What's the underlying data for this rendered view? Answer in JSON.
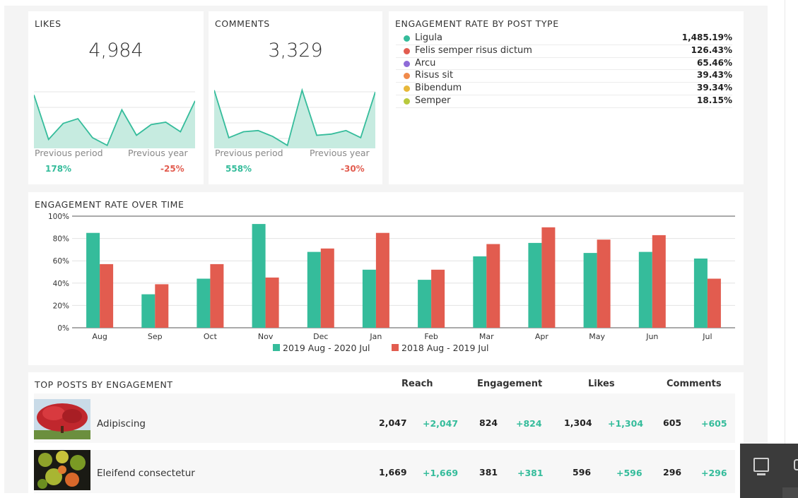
{
  "likes": {
    "title": "LIKES",
    "value": "4,984",
    "prev_period_label": "Previous period",
    "prev_period_value": "178%",
    "prev_year_label": "Previous year",
    "prev_year_value": "-25%"
  },
  "comments": {
    "title": "COMMENTS",
    "value": "3,329",
    "prev_period_label": "Previous period",
    "prev_period_value": "558%",
    "prev_year_label": "Previous year",
    "prev_year_value": "-30%"
  },
  "engagement_by_type": {
    "title": "ENGAGEMENT RATE BY POST TYPE",
    "items": [
      {
        "name": "Ligula",
        "value": "1,485.19%",
        "color": "#35bc9b"
      },
      {
        "name": "Felis semper risus dictum",
        "value": "126.43%",
        "color": "#e25c4f"
      },
      {
        "name": "Arcu",
        "value": "65.46%",
        "color": "#8e6bd8"
      },
      {
        "name": "Risus sit",
        "value": "39.43%",
        "color": "#f08a4b"
      },
      {
        "name": "Bibendum",
        "value": "39.34%",
        "color": "#e8b83a"
      },
      {
        "name": "Semper",
        "value": "18.15%",
        "color": "#b8c93d"
      }
    ]
  },
  "chart_data": {
    "type": "bar",
    "title": "ENGAGEMENT RATE OVER TIME",
    "categories": [
      "Aug",
      "Sep",
      "Oct",
      "Nov",
      "Dec",
      "Jan",
      "Feb",
      "Mar",
      "Apr",
      "May",
      "Jun",
      "Jul"
    ],
    "series": [
      {
        "name": "2019 Aug - 2020 Jul",
        "color": "#35bc9b",
        "values": [
          85,
          30,
          44,
          93,
          68,
          52,
          43,
          64,
          76,
          67,
          68,
          62
        ]
      },
      {
        "name": "2018 Aug - 2019 Jul",
        "color": "#e25c4f",
        "values": [
          57,
          39,
          57,
          45,
          71,
          85,
          52,
          75,
          90,
          79,
          83,
          44
        ]
      }
    ],
    "yticks": [
      "0%",
      "20%",
      "40%",
      "60%",
      "80%",
      "100%"
    ],
    "ylim": [
      0,
      100
    ],
    "legend": "bottom",
    "grid": true
  },
  "top_posts": {
    "title": "TOP POSTS BY ENGAGEMENT",
    "columns": [
      "Reach",
      "Engagement",
      "Likes",
      "Comments"
    ],
    "rows": [
      {
        "title": "Adipiscing",
        "thumb": "red-tree-thumbnail",
        "reach": "2,047",
        "reach_delta": "+2,047",
        "engagement": "824",
        "engagement_delta": "+824",
        "likes": "1,304",
        "likes_delta": "+1,304",
        "comments": "605",
        "comments_delta": "+605"
      },
      {
        "title": "Eleifend consectetur",
        "thumb": "autumn-leaves-thumbnail",
        "reach": "1,669",
        "reach_delta": "+1,669",
        "engagement": "381",
        "engagement_delta": "+381",
        "likes": "596",
        "likes_delta": "+596",
        "comments": "296",
        "comments_delta": "+296"
      }
    ]
  },
  "sparklines": {
    "likes": [
      0.9,
      0.15,
      0.42,
      0.5,
      0.18,
      0.05,
      0.65,
      0.22,
      0.4,
      0.44,
      0.28,
      0.8
    ],
    "comments": [
      0.98,
      0.18,
      0.28,
      0.3,
      0.2,
      0.05,
      0.98,
      0.22,
      0.24,
      0.3,
      0.18,
      0.95
    ]
  },
  "colors": {
    "accent": "#35bc9b",
    "negative": "#e25c4f"
  }
}
